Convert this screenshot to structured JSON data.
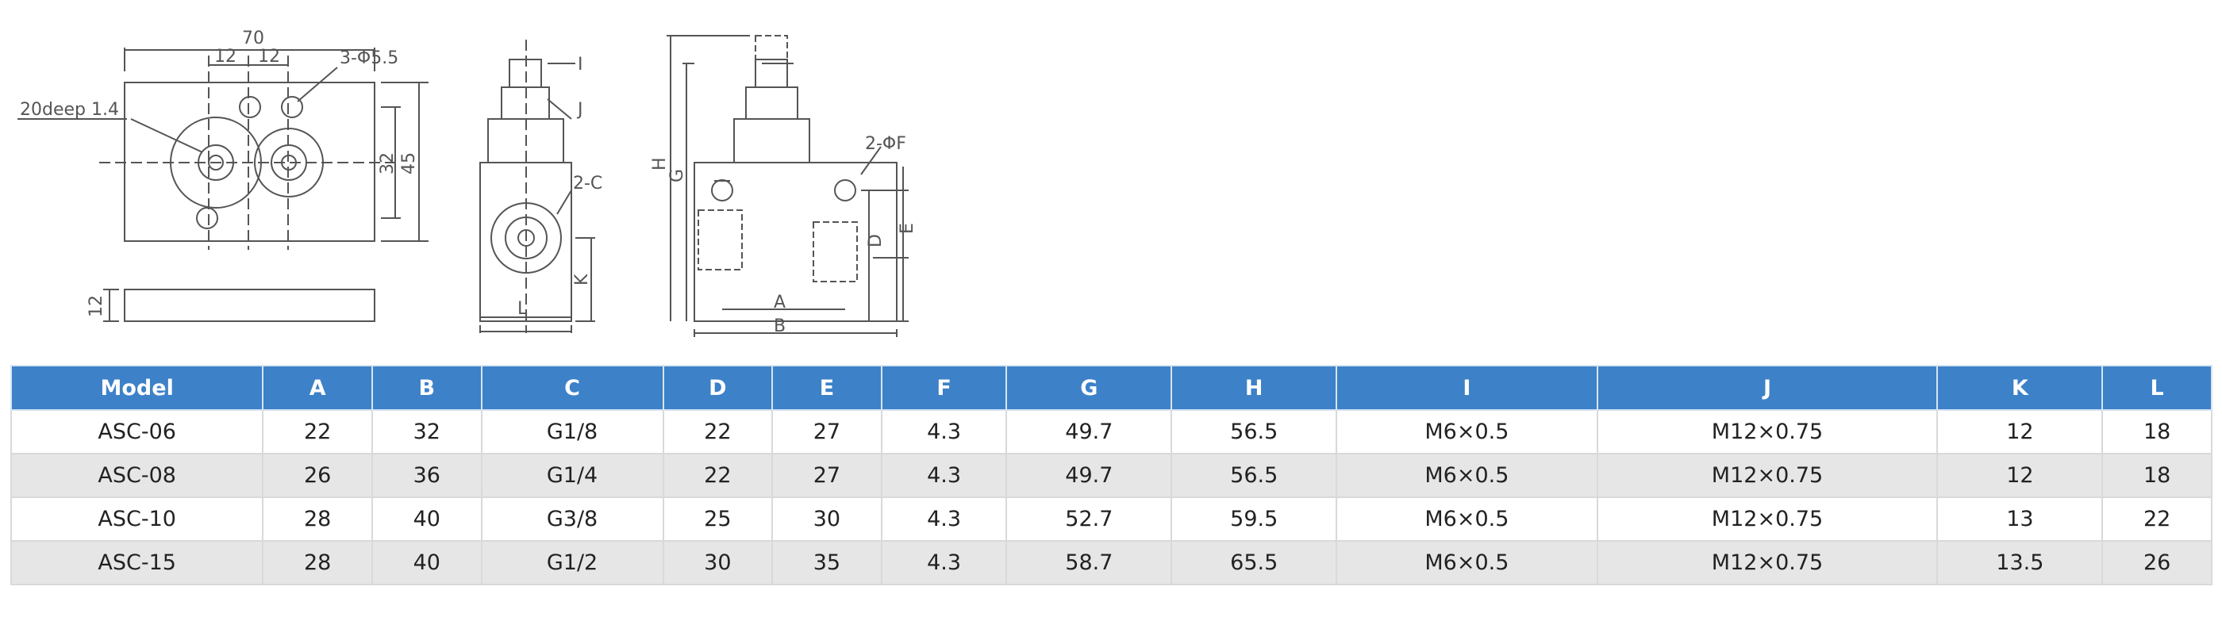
{
  "drawing": {
    "front_view": {
      "width_dim": "70",
      "pitch_left": "12",
      "pitch_right": "12",
      "holes": "3-Φ5.5",
      "depth": "20deep 1.4",
      "dim_32": "32",
      "dim_45": "45"
    },
    "bottom_view": {
      "thickness": "12"
    },
    "side_view": {
      "label_I": "I",
      "label_J": "J",
      "label_C": "2-C",
      "label_K": "K",
      "label_L": "L"
    },
    "right_view": {
      "label_H": "H",
      "label_G": "G",
      "label_F": "2-ΦF",
      "label_D": "D",
      "label_E": "E",
      "label_A": "A",
      "label_B": "B"
    }
  },
  "table": {
    "headers": [
      "Model",
      "A",
      "B",
      "C",
      "D",
      "E",
      "F",
      "G",
      "H",
      "I",
      "J",
      "K",
      "L"
    ],
    "rows": [
      [
        "ASC-06",
        "22",
        "32",
        "G1/8",
        "22",
        "27",
        "4.3",
        "49.7",
        "56.5",
        "M6×0.5",
        "M12×0.75",
        "12",
        "18"
      ],
      [
        "ASC-08",
        "26",
        "36",
        "G1/4",
        "22",
        "27",
        "4.3",
        "49.7",
        "56.5",
        "M6×0.5",
        "M12×0.75",
        "12",
        "18"
      ],
      [
        "ASC-10",
        "28",
        "40",
        "G3/8",
        "25",
        "30",
        "4.3",
        "52.7",
        "59.5",
        "M6×0.5",
        "M12×0.75",
        "13",
        "22"
      ],
      [
        "ASC-15",
        "28",
        "40",
        "G1/2",
        "30",
        "35",
        "4.3",
        "58.7",
        "65.5",
        "M6×0.5",
        "M12×0.75",
        "13.5",
        "26"
      ]
    ]
  }
}
